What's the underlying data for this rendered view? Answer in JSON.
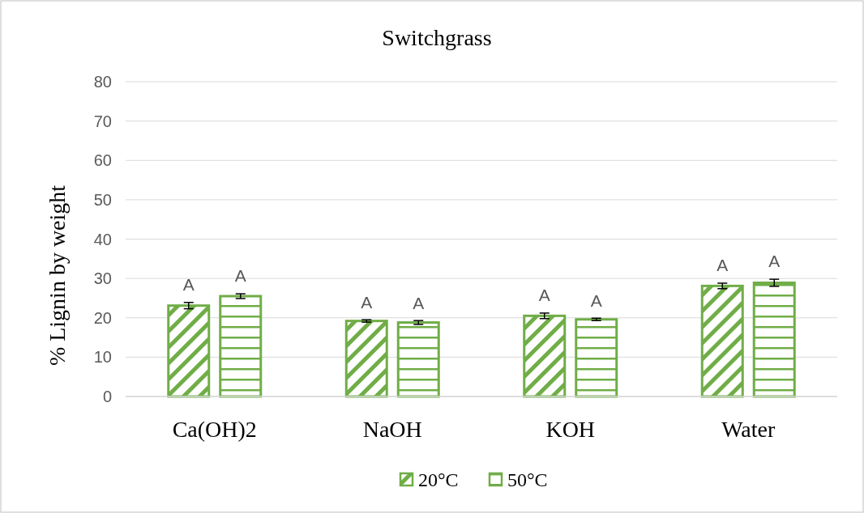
{
  "chart_data": {
    "type": "bar",
    "title": "Switchgrass",
    "ylabel": "% Lignin by weight",
    "categories": [
      "Ca(OH)2",
      "NaOH",
      "KOH",
      "Water"
    ],
    "series": [
      {
        "name": "20°C",
        "color": "#70ad47",
        "values": [
          23.1,
          19.2,
          20.5,
          28.1
        ],
        "errors": [
          0.8,
          0.3,
          0.7,
          0.7
        ],
        "value_labels": [
          "A",
          "A",
          "A",
          "A"
        ]
      },
      {
        "name": "50°C",
        "color": "#70ad47",
        "values": [
          25.5,
          18.8,
          19.6,
          28.9
        ],
        "errors": [
          0.6,
          0.5,
          0.3,
          0.9
        ],
        "value_labels": [
          "A",
          "A",
          "A",
          "A"
        ]
      }
    ],
    "ylim": [
      0,
      80
    ],
    "yticks": [
      0,
      10,
      20,
      30,
      40,
      50,
      60,
      70,
      80
    ],
    "grid": "y",
    "legend": "bottom"
  }
}
